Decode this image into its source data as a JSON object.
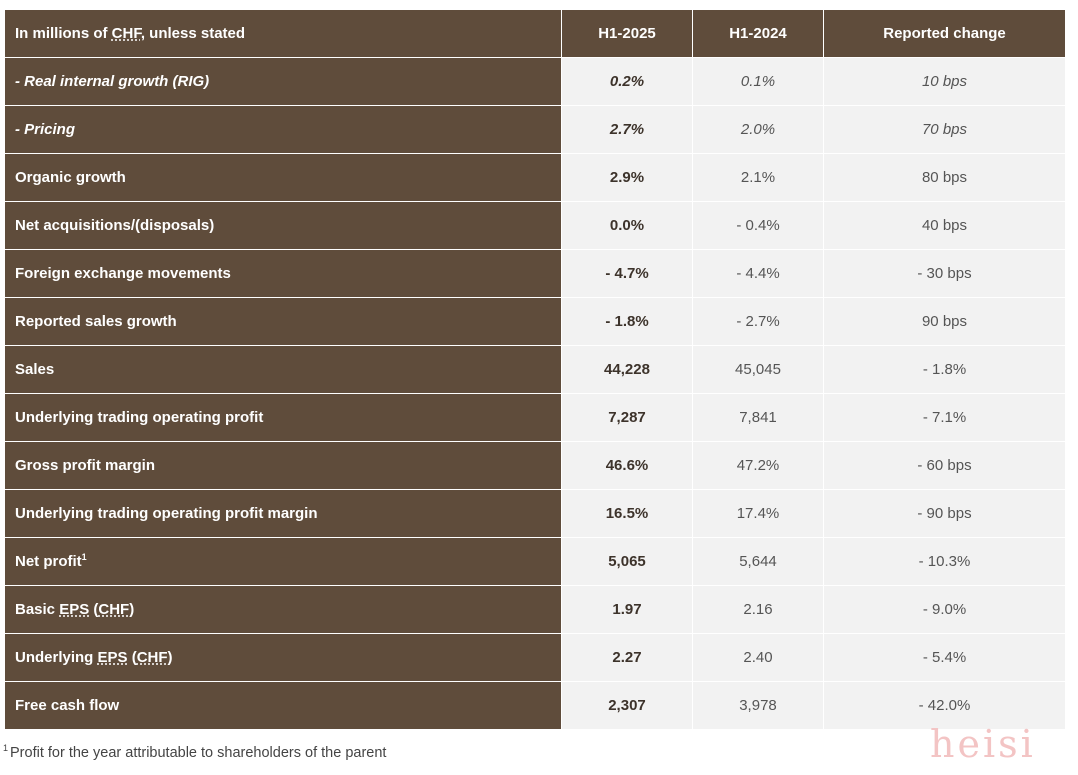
{
  "header": {
    "label_pre": "In millions of ",
    "label_abbr": "CHF",
    "label_post": ", unless stated",
    "col1": "H1-2025",
    "col2": "H1-2024",
    "col3": "Reported change"
  },
  "rows": [
    {
      "label": "- Real internal growth (RIG)",
      "h1_2025": "0.2%",
      "h1_2024": "0.1%",
      "change": "10 bps"
    },
    {
      "label": "- Pricing",
      "h1_2025": "2.7%",
      "h1_2024": "2.0%",
      "change": "70 bps"
    },
    {
      "label": "Organic growth",
      "h1_2025": "2.9%",
      "h1_2024": "2.1%",
      "change": "80 bps"
    },
    {
      "label": "Net acquisitions/(disposals)",
      "h1_2025": "0.0%",
      "h1_2024": "- 0.4%",
      "change": "40 bps"
    },
    {
      "label": "Foreign exchange movements",
      "h1_2025": "- 4.7%",
      "h1_2024": "- 4.4%",
      "change": "- 30 bps"
    },
    {
      "label": "Reported sales growth",
      "h1_2025": "- 1.8%",
      "h1_2024": "- 2.7%",
      "change": "90 bps"
    },
    {
      "label": "Sales",
      "h1_2025": "44,228",
      "h1_2024": "45,045",
      "change": "- 1.8%"
    },
    {
      "label": "Underlying trading operating profit",
      "h1_2025": "7,287",
      "h1_2024": "7,841",
      "change": "- 7.1%"
    },
    {
      "label": "Gross profit margin",
      "h1_2025": "46.6%",
      "h1_2024": "47.2%",
      "change": "- 60 bps"
    },
    {
      "label": "Underlying trading operating profit margin",
      "h1_2025": "16.5%",
      "h1_2024": "17.4%",
      "change": "- 90 bps"
    },
    {
      "label": "Net profit",
      "label_sup": "1",
      "h1_2025": "5,065",
      "h1_2024": "5,644",
      "change": "- 10.3%"
    },
    {
      "label_pre": "Basic ",
      "label_abbr1": "EPS",
      "label_mid": " (",
      "label_abbr2": "CHF",
      "label_post": ")",
      "h1_2025": "1.97",
      "h1_2024": "2.16",
      "change": "- 9.0%"
    },
    {
      "label_pre": "Underlying ",
      "label_abbr1": "EPS",
      "label_mid": " (",
      "label_abbr2": "CHF",
      "label_post": ")",
      "h1_2025": "2.27",
      "h1_2024": "2.40",
      "change": "- 5.4%"
    },
    {
      "label": "Free cash flow",
      "h1_2025": "2,307",
      "h1_2024": "3,978",
      "change": "- 42.0%"
    }
  ],
  "footnote": {
    "sup": "1",
    "text": "Profit for the year attributable to shareholders of the parent"
  },
  "watermark": "heisi",
  "colors": {
    "header_bg": "#5f4c3b",
    "cell_bg": "#f2f2f2"
  }
}
